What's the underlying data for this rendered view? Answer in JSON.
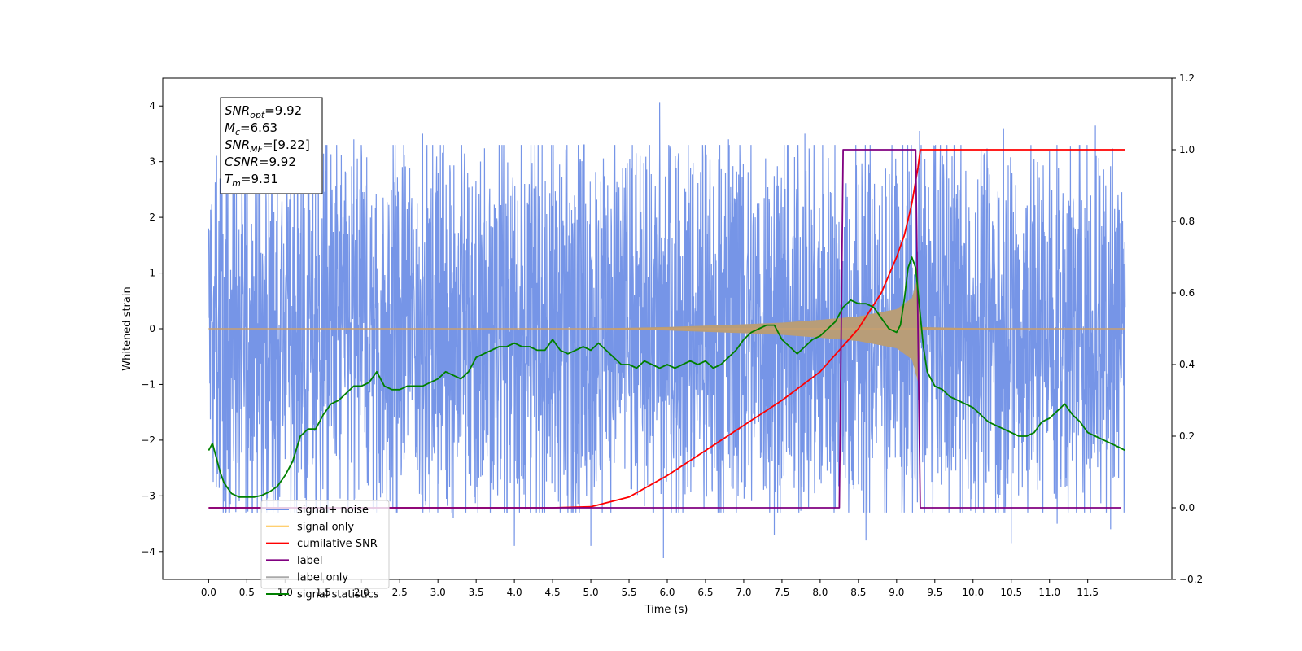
{
  "chart_data": {
    "type": "line",
    "xlabel": "Time (s)",
    "ylabel": "Whitened strain",
    "xlim": [
      -0.6,
      12.6
    ],
    "ylim": [
      -4.5,
      4.5
    ],
    "y2lim": [
      -0.2,
      1.2
    ],
    "x_ticks": [
      "0.0",
      "0.5",
      "1.0",
      "1.5",
      "2.0",
      "2.5",
      "3.0",
      "3.5",
      "4.0",
      "4.5",
      "5.0",
      "5.5",
      "6.0",
      "6.5",
      "7.0",
      "7.5",
      "8.0",
      "8.5",
      "9.0",
      "9.5",
      "10.0",
      "10.5",
      "11.0",
      "11.5"
    ],
    "y_ticks": [
      4,
      3,
      2,
      1,
      0,
      -1,
      -2,
      -3,
      -4
    ],
    "y2_ticks": [
      "1.2",
      "1.0",
      "0.8",
      "0.6",
      "0.4",
      "0.2",
      "0.0",
      "−0.2"
    ],
    "annotation_box": [
      {
        "base": "SNR",
        "sub": "opt",
        "value": "=9.92"
      },
      {
        "base": "M",
        "sub": "c",
        "value": "=6.63"
      },
      {
        "base": "SNR",
        "sub": "MF",
        "value": "=[9.22]"
      },
      {
        "base": "CSNR",
        "sub": "",
        "value": "=9.92"
      },
      {
        "base": "T",
        "sub": "m",
        "value": "=9.31"
      }
    ],
    "legend_placement": "lower-left",
    "legend": [
      {
        "label": "signal+ noise",
        "color": "#6f8fe6"
      },
      {
        "label": "signal only",
        "color": "#ffbf40"
      },
      {
        "label": "cumilative SNR",
        "color": "#ff0000"
      },
      {
        "label": "label",
        "color": "#800080"
      },
      {
        "label": "label only",
        "color": "#aaaaaa"
      },
      {
        "label": "signal statistics",
        "color": "#008000"
      }
    ],
    "series": [
      {
        "name": "signal+ noise",
        "axis": "left",
        "color": "#6f8fe6",
        "noise_envelope": {
          "x_range": [
            0,
            11.99
          ],
          "typical_band": [
            -2.0,
            2.0
          ],
          "max": 4.07,
          "min": -4.12
        },
        "spikes": [
          [
            0.1,
            2.6
          ],
          [
            0.2,
            -3.1
          ],
          [
            1.3,
            3.3
          ],
          [
            1.9,
            3.4
          ],
          [
            2.8,
            3.5
          ],
          [
            3.2,
            -3.4
          ],
          [
            4.0,
            -3.9
          ],
          [
            5.0,
            -3.9
          ],
          [
            5.9,
            4.07
          ],
          [
            5.95,
            -4.12
          ],
          [
            6.8,
            3.4
          ],
          [
            7.4,
            -3.7
          ],
          [
            7.8,
            3.5
          ],
          [
            8.6,
            -3.8
          ],
          [
            9.3,
            3.55
          ],
          [
            9.6,
            3.1
          ],
          [
            10.4,
            3.6
          ],
          [
            10.5,
            -3.85
          ],
          [
            11.1,
            -3.5
          ],
          [
            11.6,
            3.65
          ],
          [
            11.8,
            -3.6
          ]
        ]
      },
      {
        "name": "signal only",
        "axis": "left",
        "color": "#ffbf40",
        "envelope": [
          [
            0,
            0.0
          ],
          [
            4,
            0.0
          ],
          [
            5,
            0.005
          ],
          [
            6,
            0.03
          ],
          [
            7,
            0.08
          ],
          [
            7.5,
            0.11
          ],
          [
            8,
            0.16
          ],
          [
            8.5,
            0.22
          ],
          [
            9,
            0.35
          ],
          [
            9.2,
            0.55
          ],
          [
            9.28,
            0.95
          ],
          [
            9.32,
            0.03
          ],
          [
            10,
            0.01
          ],
          [
            11.99,
            0.0
          ]
        ]
      },
      {
        "name": "cumilative SNR",
        "axis": "right",
        "color": "#ff0000",
        "points": [
          [
            0,
            0
          ],
          [
            4.5,
            0
          ],
          [
            5,
            0.003
          ],
          [
            5.5,
            0.03
          ],
          [
            6,
            0.09
          ],
          [
            6.5,
            0.16
          ],
          [
            7,
            0.23
          ],
          [
            7.5,
            0.3
          ],
          [
            8,
            0.38
          ],
          [
            8.5,
            0.5
          ],
          [
            8.8,
            0.6
          ],
          [
            9,
            0.7
          ],
          [
            9.1,
            0.76
          ],
          [
            9.2,
            0.85
          ],
          [
            9.28,
            0.95
          ],
          [
            9.31,
            1.0
          ],
          [
            11.99,
            1.0
          ]
        ]
      },
      {
        "name": "label",
        "axis": "right",
        "color": "#800080",
        "points": [
          [
            0,
            0
          ],
          [
            8.25,
            0
          ],
          [
            8.3,
            1.0
          ],
          [
            9.25,
            1.0
          ],
          [
            9.31,
            0
          ],
          [
            11.94,
            0
          ]
        ]
      },
      {
        "name": "signal statistics",
        "axis": "right",
        "color": "#008000",
        "points": [
          [
            0,
            0.16
          ],
          [
            0.05,
            0.18
          ],
          [
            0.1,
            0.14
          ],
          [
            0.15,
            0.1
          ],
          [
            0.2,
            0.07
          ],
          [
            0.3,
            0.04
          ],
          [
            0.4,
            0.03
          ],
          [
            0.5,
            0.03
          ],
          [
            0.6,
            0.03
          ],
          [
            0.7,
            0.035
          ],
          [
            0.8,
            0.045
          ],
          [
            0.9,
            0.06
          ],
          [
            1.0,
            0.09
          ],
          [
            1.1,
            0.13
          ],
          [
            1.2,
            0.2
          ],
          [
            1.3,
            0.22
          ],
          [
            1.4,
            0.22
          ],
          [
            1.5,
            0.26
          ],
          [
            1.6,
            0.29
          ],
          [
            1.7,
            0.3
          ],
          [
            1.8,
            0.32
          ],
          [
            1.9,
            0.34
          ],
          [
            2.0,
            0.34
          ],
          [
            2.1,
            0.35
          ],
          [
            2.2,
            0.38
          ],
          [
            2.3,
            0.34
          ],
          [
            2.4,
            0.33
          ],
          [
            2.5,
            0.33
          ],
          [
            2.6,
            0.34
          ],
          [
            2.8,
            0.34
          ],
          [
            3.0,
            0.36
          ],
          [
            3.1,
            0.38
          ],
          [
            3.2,
            0.37
          ],
          [
            3.3,
            0.36
          ],
          [
            3.4,
            0.38
          ],
          [
            3.5,
            0.42
          ],
          [
            3.6,
            0.43
          ],
          [
            3.7,
            0.44
          ],
          [
            3.8,
            0.45
          ],
          [
            3.9,
            0.45
          ],
          [
            4.0,
            0.46
          ],
          [
            4.1,
            0.45
          ],
          [
            4.2,
            0.45
          ],
          [
            4.3,
            0.44
          ],
          [
            4.4,
            0.44
          ],
          [
            4.5,
            0.47
          ],
          [
            4.6,
            0.44
          ],
          [
            4.7,
            0.43
          ],
          [
            4.8,
            0.44
          ],
          [
            4.9,
            0.45
          ],
          [
            5.0,
            0.44
          ],
          [
            5.1,
            0.46
          ],
          [
            5.2,
            0.44
          ],
          [
            5.3,
            0.42
          ],
          [
            5.4,
            0.4
          ],
          [
            5.5,
            0.4
          ],
          [
            5.6,
            0.39
          ],
          [
            5.7,
            0.41
          ],
          [
            5.8,
            0.4
          ],
          [
            5.9,
            0.39
          ],
          [
            6.0,
            0.4
          ],
          [
            6.1,
            0.39
          ],
          [
            6.2,
            0.4
          ],
          [
            6.3,
            0.41
          ],
          [
            6.4,
            0.4
          ],
          [
            6.5,
            0.41
          ],
          [
            6.6,
            0.39
          ],
          [
            6.7,
            0.4
          ],
          [
            6.8,
            0.42
          ],
          [
            6.9,
            0.44
          ],
          [
            7.0,
            0.47
          ],
          [
            7.1,
            0.49
          ],
          [
            7.2,
            0.5
          ],
          [
            7.3,
            0.51
          ],
          [
            7.4,
            0.51
          ],
          [
            7.5,
            0.47
          ],
          [
            7.6,
            0.45
          ],
          [
            7.7,
            0.43
          ],
          [
            7.8,
            0.45
          ],
          [
            7.9,
            0.47
          ],
          [
            8.0,
            0.48
          ],
          [
            8.1,
            0.5
          ],
          [
            8.2,
            0.52
          ],
          [
            8.3,
            0.56
          ],
          [
            8.4,
            0.58
          ],
          [
            8.5,
            0.57
          ],
          [
            8.6,
            0.57
          ],
          [
            8.7,
            0.56
          ],
          [
            8.8,
            0.53
          ],
          [
            8.9,
            0.5
          ],
          [
            9.0,
            0.49
          ],
          [
            9.05,
            0.51
          ],
          [
            9.1,
            0.58
          ],
          [
            9.15,
            0.67
          ],
          [
            9.2,
            0.7
          ],
          [
            9.25,
            0.67
          ],
          [
            9.3,
            0.56
          ],
          [
            9.35,
            0.45
          ],
          [
            9.4,
            0.38
          ],
          [
            9.5,
            0.34
          ],
          [
            9.6,
            0.33
          ],
          [
            9.7,
            0.31
          ],
          [
            9.8,
            0.3
          ],
          [
            9.9,
            0.29
          ],
          [
            10.0,
            0.28
          ],
          [
            10.1,
            0.26
          ],
          [
            10.2,
            0.24
          ],
          [
            10.3,
            0.23
          ],
          [
            10.4,
            0.22
          ],
          [
            10.5,
            0.21
          ],
          [
            10.6,
            0.2
          ],
          [
            10.7,
            0.2
          ],
          [
            10.8,
            0.21
          ],
          [
            10.9,
            0.24
          ],
          [
            11.0,
            0.25
          ],
          [
            11.1,
            0.27
          ],
          [
            11.2,
            0.29
          ],
          [
            11.3,
            0.26
          ],
          [
            11.4,
            0.24
          ],
          [
            11.5,
            0.21
          ],
          [
            11.6,
            0.2
          ],
          [
            11.7,
            0.19
          ],
          [
            11.8,
            0.18
          ],
          [
            11.9,
            0.17
          ],
          [
            11.99,
            0.16
          ]
        ]
      }
    ]
  }
}
